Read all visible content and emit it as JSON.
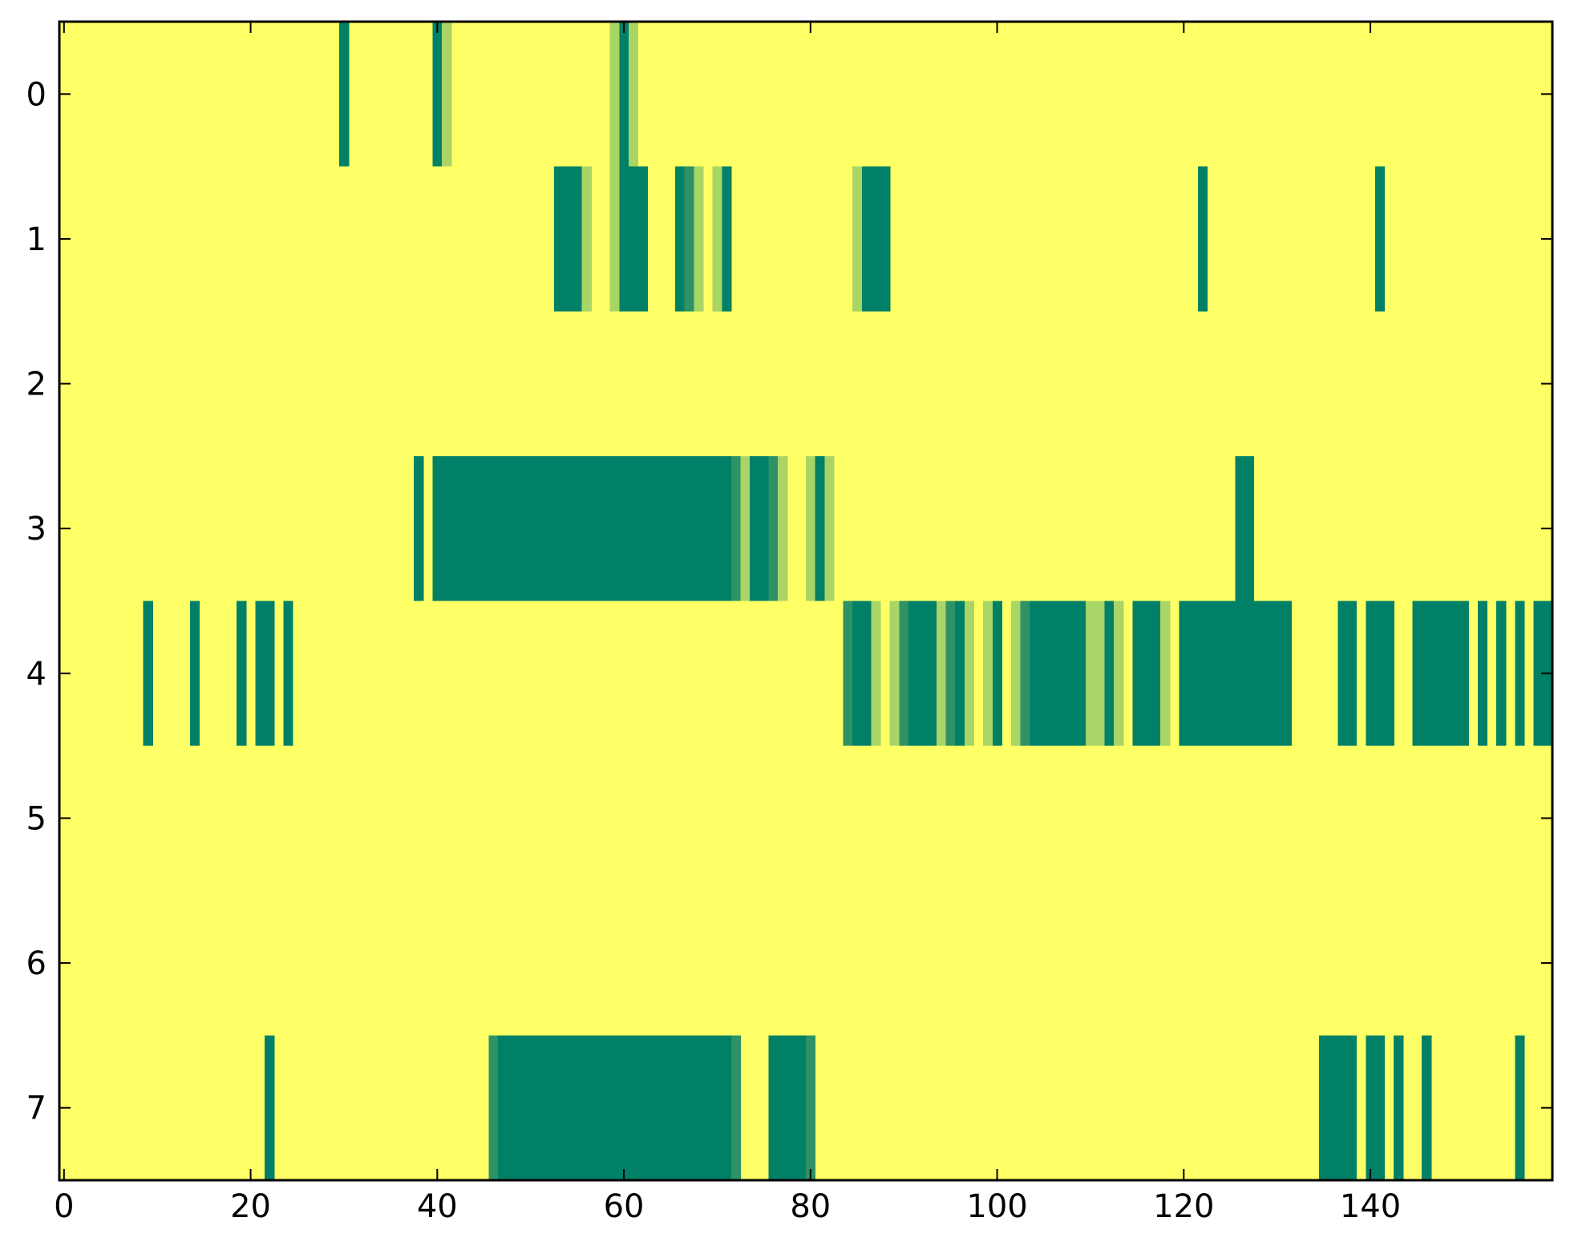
{
  "chart_data": {
    "type": "heatmap",
    "title": "",
    "xlabel": "",
    "ylabel": "",
    "xlim": [
      -0.5,
      159.5
    ],
    "ylim": [
      7.5,
      -0.5
    ],
    "x_ticks": [
      {
        "value": 0,
        "label": "0"
      },
      {
        "value": 20,
        "label": "20"
      },
      {
        "value": 40,
        "label": "40"
      },
      {
        "value": 60,
        "label": "60"
      },
      {
        "value": 80,
        "label": "80"
      },
      {
        "value": 100,
        "label": "100"
      },
      {
        "value": 120,
        "label": "120"
      },
      {
        "value": 140,
        "label": "140"
      }
    ],
    "y_ticks": [
      {
        "value": 0,
        "label": "0"
      },
      {
        "value": 1,
        "label": "1"
      },
      {
        "value": 2,
        "label": "2"
      },
      {
        "value": 3,
        "label": "3"
      },
      {
        "value": 4,
        "label": "4"
      },
      {
        "value": 5,
        "label": "5"
      },
      {
        "value": 6,
        "label": "6"
      },
      {
        "value": 7,
        "label": "7"
      }
    ],
    "colormap": "summer_r",
    "background_value": 0,
    "palette": {
      "0": "#ffff66",
      "1": "#a9d466",
      "2": "#2e9266",
      "3": "#008066"
    },
    "rows": [
      {
        "row": 0,
        "cells": [
          [
            30,
            3
          ],
          [
            40,
            3
          ],
          [
            41,
            1
          ],
          [
            59,
            1
          ],
          [
            60,
            3
          ],
          [
            61,
            1
          ]
        ]
      },
      {
        "row": 1,
        "cells": [
          [
            53,
            3
          ],
          [
            54,
            3
          ],
          [
            55,
            3
          ],
          [
            56,
            1
          ],
          [
            59,
            1
          ],
          [
            60,
            3
          ],
          [
            61,
            3
          ],
          [
            62,
            3
          ],
          [
            66,
            3
          ],
          [
            67,
            2
          ],
          [
            68,
            1
          ],
          [
            70,
            1
          ],
          [
            71,
            3
          ],
          [
            85,
            1
          ],
          [
            86,
            3
          ],
          [
            87,
            3
          ],
          [
            88,
            3
          ],
          [
            122,
            3
          ],
          [
            141,
            3
          ]
        ]
      },
      {
        "row": 2,
        "cells": []
      },
      {
        "row": 3,
        "cells": [
          [
            38,
            3
          ],
          [
            40,
            3
          ],
          [
            41,
            3
          ],
          [
            42,
            3
          ],
          [
            43,
            3
          ],
          [
            44,
            3
          ],
          [
            45,
            3
          ],
          [
            46,
            3
          ],
          [
            47,
            3
          ],
          [
            48,
            3
          ],
          [
            49,
            3
          ],
          [
            50,
            3
          ],
          [
            51,
            3
          ],
          [
            52,
            3
          ],
          [
            53,
            3
          ],
          [
            54,
            3
          ],
          [
            55,
            3
          ],
          [
            56,
            3
          ],
          [
            57,
            3
          ],
          [
            58,
            3
          ],
          [
            59,
            3
          ],
          [
            60,
            3
          ],
          [
            61,
            3
          ],
          [
            62,
            3
          ],
          [
            63,
            3
          ],
          [
            64,
            3
          ],
          [
            65,
            3
          ],
          [
            66,
            3
          ],
          [
            67,
            3
          ],
          [
            68,
            3
          ],
          [
            69,
            3
          ],
          [
            70,
            3
          ],
          [
            71,
            3
          ],
          [
            72,
            2
          ],
          [
            73,
            1
          ],
          [
            74,
            3
          ],
          [
            75,
            3
          ],
          [
            76,
            2
          ],
          [
            77,
            1
          ],
          [
            80,
            1
          ],
          [
            81,
            3
          ],
          [
            82,
            1
          ],
          [
            126,
            3
          ],
          [
            127,
            3
          ]
        ]
      },
      {
        "row": 4,
        "cells": [
          [
            9,
            3
          ],
          [
            14,
            3
          ],
          [
            19,
            3
          ],
          [
            21,
            3
          ],
          [
            22,
            3
          ],
          [
            24,
            3
          ],
          [
            84,
            2
          ],
          [
            85,
            3
          ],
          [
            86,
            3
          ],
          [
            87,
            1
          ],
          [
            89,
            1
          ],
          [
            90,
            2
          ],
          [
            91,
            3
          ],
          [
            92,
            3
          ],
          [
            93,
            3
          ],
          [
            94,
            1
          ],
          [
            95,
            2
          ],
          [
            96,
            3
          ],
          [
            97,
            1
          ],
          [
            99,
            1
          ],
          [
            100,
            3
          ],
          [
            102,
            1
          ],
          [
            103,
            2
          ],
          [
            104,
            3
          ],
          [
            105,
            3
          ],
          [
            106,
            3
          ],
          [
            107,
            3
          ],
          [
            108,
            3
          ],
          [
            109,
            3
          ],
          [
            110,
            1
          ],
          [
            111,
            1
          ],
          [
            112,
            3
          ],
          [
            113,
            1
          ],
          [
            115,
            3
          ],
          [
            116,
            3
          ],
          [
            117,
            3
          ],
          [
            118,
            1
          ],
          [
            120,
            3
          ],
          [
            121,
            3
          ],
          [
            122,
            3
          ],
          [
            123,
            3
          ],
          [
            124,
            3
          ],
          [
            125,
            3
          ],
          [
            126,
            3
          ],
          [
            127,
            3
          ],
          [
            128,
            3
          ],
          [
            129,
            3
          ],
          [
            130,
            3
          ],
          [
            131,
            3
          ],
          [
            137,
            3
          ],
          [
            138,
            3
          ],
          [
            140,
            3
          ],
          [
            141,
            3
          ],
          [
            142,
            3
          ],
          [
            145,
            3
          ],
          [
            146,
            3
          ],
          [
            147,
            3
          ],
          [
            148,
            3
          ],
          [
            149,
            3
          ],
          [
            150,
            3
          ],
          [
            152,
            3
          ],
          [
            154,
            3
          ],
          [
            156,
            3
          ],
          [
            158,
            3
          ],
          [
            159,
            3
          ]
        ]
      },
      {
        "row": 5,
        "cells": []
      },
      {
        "row": 6,
        "cells": []
      },
      {
        "row": 7,
        "cells": [
          [
            22,
            3
          ],
          [
            46,
            2
          ],
          [
            47,
            3
          ],
          [
            48,
            3
          ],
          [
            49,
            3
          ],
          [
            50,
            3
          ],
          [
            51,
            3
          ],
          [
            52,
            3
          ],
          [
            53,
            3
          ],
          [
            54,
            3
          ],
          [
            55,
            3
          ],
          [
            56,
            3
          ],
          [
            57,
            3
          ],
          [
            58,
            3
          ],
          [
            59,
            3
          ],
          [
            60,
            3
          ],
          [
            61,
            3
          ],
          [
            62,
            3
          ],
          [
            63,
            3
          ],
          [
            64,
            3
          ],
          [
            65,
            3
          ],
          [
            66,
            3
          ],
          [
            67,
            3
          ],
          [
            68,
            3
          ],
          [
            69,
            3
          ],
          [
            70,
            3
          ],
          [
            71,
            3
          ],
          [
            72,
            2
          ],
          [
            76,
            3
          ],
          [
            77,
            3
          ],
          [
            78,
            3
          ],
          [
            79,
            3
          ],
          [
            80,
            2
          ],
          [
            135,
            3
          ],
          [
            136,
            3
          ],
          [
            137,
            3
          ],
          [
            138,
            3
          ],
          [
            140,
            3
          ],
          [
            141,
            3
          ],
          [
            143,
            3
          ],
          [
            146,
            3
          ],
          [
            156,
            3
          ]
        ]
      }
    ],
    "grid": false,
    "legend": "none"
  }
}
